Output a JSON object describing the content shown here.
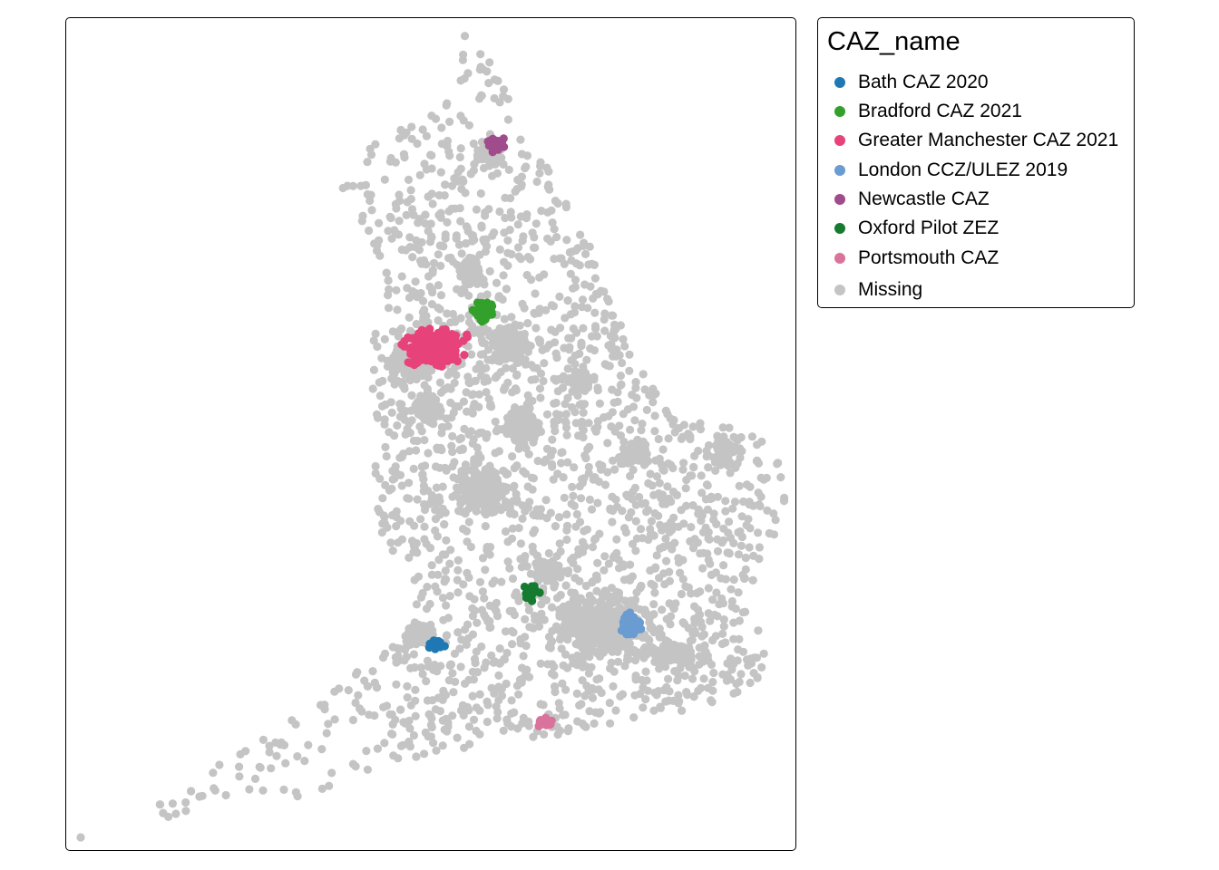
{
  "legend": {
    "title": "CAZ_name",
    "items": [
      {
        "label": "Bath CAZ 2020",
        "color": "#1f78b4"
      },
      {
        "label": "Bradford CAZ 2021",
        "color": "#33a02c"
      },
      {
        "label": "Greater Manchester CAZ 2021",
        "color": "#e7427a"
      },
      {
        "label": "London CCZ/ULEZ 2019",
        "color": "#6a9bd1"
      },
      {
        "label": "Newcastle CAZ",
        "color": "#a04c8c"
      },
      {
        "label": "Oxford Pilot ZEZ",
        "color": "#167a30"
      },
      {
        "label": "Portsmouth CAZ",
        "color": "#d9739c"
      },
      {
        "label": "Missing",
        "color": "#c4c4c4"
      }
    ]
  }
}
